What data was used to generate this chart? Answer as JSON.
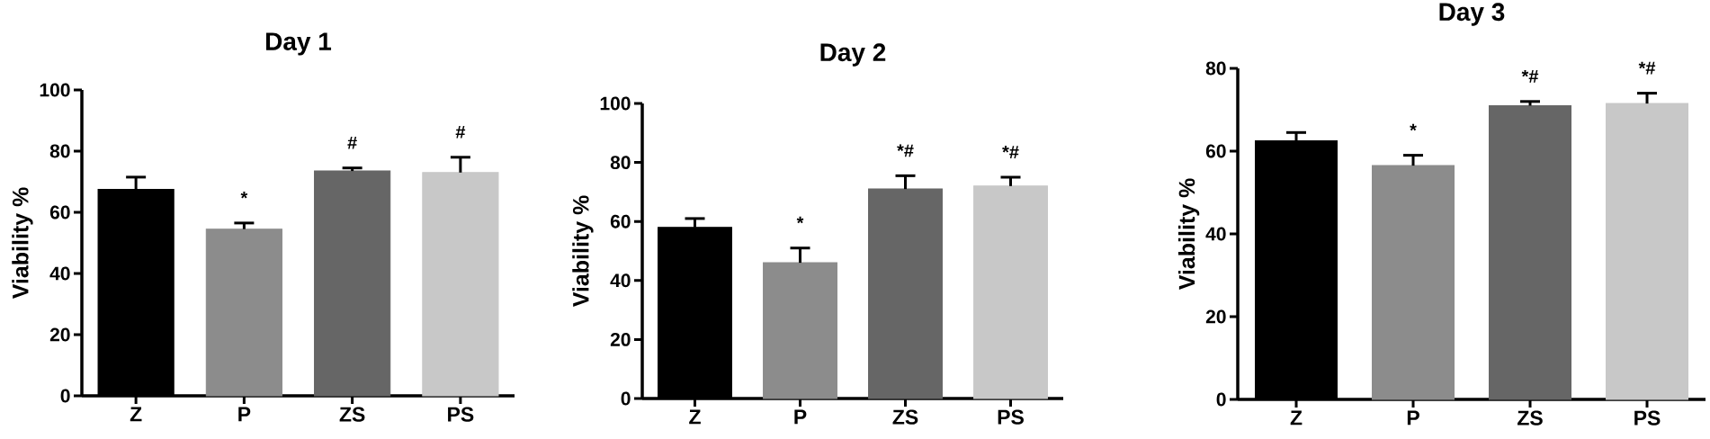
{
  "chart_data": [
    {
      "type": "bar",
      "title": "Day 1",
      "ylabel": "Viability %",
      "categories": [
        "Z",
        "P",
        "ZS",
        "PS"
      ],
      "values": [
        67.5,
        54.5,
        73.5,
        73
      ],
      "colors": [
        "#000000",
        "#8c8c8c",
        "#666666",
        "#c8c8c8"
      ],
      "errors": [
        [
          67.5,
          71.5
        ],
        [
          54.5,
          56.5
        ],
        [
          73.5,
          74.5
        ],
        [
          73,
          78
        ]
      ],
      "ylim": [
        0,
        100
      ],
      "yticks": [
        0,
        20,
        40,
        60,
        80,
        100
      ],
      "annotations": [
        "*",
        "#",
        "#"
      ]
    },
    {
      "type": "bar",
      "title": "Day 2",
      "ylabel": "Viability %",
      "categories": [
        "Z",
        "P",
        "ZS",
        "PS"
      ],
      "values": [
        58,
        46,
        71,
        72
      ],
      "colors": [
        "#000000",
        "#8c8c8c",
        "#666666",
        "#c8c8c8"
      ],
      "errors": [
        [
          58,
          61
        ],
        [
          46,
          51
        ],
        [
          71,
          75.5
        ],
        [
          72,
          75
        ]
      ],
      "ylim": [
        0,
        100
      ],
      "yticks": [
        0,
        20,
        40,
        60,
        80,
        100
      ],
      "annotations": [
        "*",
        "*#",
        "*#"
      ]
    },
    {
      "type": "bar",
      "title": "Day 3",
      "ylabel": "Viability %",
      "categories": [
        "Z",
        "P",
        "ZS",
        "PS"
      ],
      "values": [
        62.5,
        56.5,
        71,
        71.5
      ],
      "colors": [
        "#000000",
        "#8c8c8c",
        "#666666",
        "#c8c8c8"
      ],
      "errors": [
        [
          62.5,
          64.5
        ],
        [
          56.5,
          59
        ],
        [
          71,
          72
        ],
        [
          71.5,
          74
        ]
      ],
      "ylim": [
        0,
        80
      ],
      "yticks": [
        0,
        20,
        40,
        60,
        80
      ],
      "annotations": [
        "*",
        "*#",
        "*#"
      ]
    }
  ]
}
